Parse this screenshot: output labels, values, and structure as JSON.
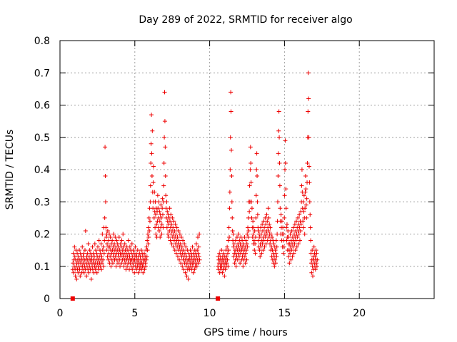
{
  "chart_data": {
    "type": "scatter",
    "title": "Day 289 of 2022, SRMTID for receiver algo",
    "xlabel": "GPS time / hours",
    "ylabel": "SRMTID / TECUs",
    "xlim": [
      0,
      25
    ],
    "ylim": [
      0,
      0.8
    ],
    "xticks": [
      0,
      5,
      10,
      15,
      20
    ],
    "xtick_labels": [
      "0",
      "5",
      "10",
      "15",
      "20"
    ],
    "yticks": [
      0,
      0.1,
      0.2,
      0.3,
      0.4,
      0.5,
      0.6,
      0.7,
      0.8
    ],
    "ytick_labels": [
      "0",
      "0.1",
      "0.2",
      "0.3",
      "0.4",
      "0.5",
      "0.6",
      "0.7",
      "0.8"
    ],
    "grid": true,
    "marker": "+",
    "color": "#ee0000",
    "point_interval_hours": 0.02,
    "series": [
      {
        "name": "SRMTID",
        "segments": [
          {
            "x_start": 0.85,
            "values": [
              0.09,
              0.11,
              0.14,
              0.08,
              0.12,
              0.1,
              0.16,
              0.13,
              0.09,
              0.07,
              0.12,
              0.15,
              0.1,
              0.06,
              0.11,
              0.14,
              0.09,
              0.12,
              0.08,
              0.13,
              0.11,
              0.1,
              0.15,
              0.09,
              0.12,
              0.07,
              0.14,
              0.11,
              0.1,
              0.13,
              0.08,
              0.12,
              0.16,
              0.1,
              0.09,
              0.13,
              0.11,
              0.14,
              0.08,
              0.12,
              0.1,
              0.15,
              0.09,
              0.21,
              0.12,
              0.11,
              0.07,
              0.13,
              0.1,
              0.14,
              0.12,
              0.09,
              0.17,
              0.11,
              0.08,
              0.13,
              0.1,
              0.15,
              0.12,
              0.09,
              0.14,
              0.11,
              0.06,
              0.12,
              0.13,
              0.1,
              0.16,
              0.09,
              0.11,
              0.14,
              0.12,
              0.08,
              0.13,
              0.1,
              0.17,
              0.11,
              0.09,
              0.15,
              0.12,
              0.1,
              0.14,
              0.08,
              0.13,
              0.11,
              0.16,
              0.1,
              0.12,
              0.09,
              0.18,
              0.13,
              0.11,
              0.15,
              0.1,
              0.14,
              0.12,
              0.17,
              0.09,
              0.13,
              0.11,
              0.2,
              0.15,
              0.12,
              0.16,
              0.1,
              0.22,
              0.14,
              0.18,
              0.25,
              0.47,
              0.38,
              0.3,
              0.22,
              0.19,
              0.15,
              0.2,
              0.17,
              0.13,
              0.21,
              0.16,
              0.12,
              0.18,
              0.14,
              0.2,
              0.11,
              0.16,
              0.13,
              0.19,
              0.15,
              0.1,
              0.17,
              0.14,
              0.12,
              0.18,
              0.15,
              0.11,
              0.16,
              0.13,
              0.2,
              0.14,
              0.17,
              0.12,
              0.15,
              0.19,
              0.13,
              0.16,
              0.1,
              0.14,
              0.18,
              0.12,
              0.15,
              0.17,
              0.11,
              0.14,
              0.16,
              0.13,
              0.19,
              0.12,
              0.15,
              0.1,
              0.14,
              0.17,
              0.13,
              0.16,
              0.11,
              0.18,
              0.14,
              0.12,
              0.15,
              0.2,
              0.13,
              0.16,
              0.1,
              0.14,
              0.12,
              0.17,
              0.11,
              0.15,
              0.13,
              0.09,
              0.14,
              0.12,
              0.16,
              0.1,
              0.13,
              0.15,
              0.11,
              0.18,
              0.12,
              0.14,
              0.09,
              0.13,
              0.16,
              0.11,
              0.12,
              0.15,
              0.1,
              0.14,
              0.12,
              0.17,
              0.09,
              0.13,
              0.11,
              0.15,
              0.12,
              0.1,
              0.14,
              0.08,
              0.12,
              0.13,
              0.16,
              0.1,
              0.11,
              0.14,
              0.09,
              0.13,
              0.12,
              0.1,
              0.15,
              0.11,
              0.08,
              0.13,
              0.12,
              0.1,
              0.14,
              0.09,
              0.11,
              0.13,
              0.1,
              0.12,
              0.15,
              0.09,
              0.11,
              0.14,
              0.1,
              0.13,
              0.08,
              0.12,
              0.11,
              0.1,
              0.14,
              0.09,
              0.12,
              0.13,
              0.11,
              0.1,
              0.15,
              0.12,
              0.16,
              0.13,
              0.18,
              0.15,
              0.2,
              0.17,
              0.22,
              0.19,
              0.25,
              0.21,
              0.28,
              0.24,
              0.3,
              0.35,
              0.42,
              0.48,
              0.57,
              0.45,
              0.38,
              0.52,
              0.33,
              0.28,
              0.36,
              0.41,
              0.3,
              0.25,
              0.33,
              0.27,
              0.22,
              0.3,
              0.26,
              0.2,
              0.28,
              0.23,
              0.19,
              0.27,
              0.24,
              0.32,
              0.28,
              0.22,
              0.25,
              0.3,
              0.21,
              0.27,
              0.24,
              0.19,
              0.26,
              0.22,
              0.29,
              0.25,
              0.2,
              0.23,
              0.28,
              0.31,
              0.26,
              0.22,
              0.3,
              0.35,
              0.42,
              0.5,
              0.64,
              0.55,
              0.47,
              0.38,
              0.32,
              0.28,
              0.25,
              0.3,
              0.22,
              0.27,
              0.24,
              0.2,
              0.26,
              0.23,
              0.19,
              0.25,
              0.21,
              0.28,
              0.24,
              0.18,
              0.22,
              0.26,
              0.2,
              0.23,
              0.17,
              0.21,
              0.25,
              0.19,
              0.22,
              0.16,
              0.2,
              0.24,
              0.18,
              0.21,
              0.15,
              0.19,
              0.23,
              0.17,
              0.2,
              0.14,
              0.18,
              0.22,
              0.16,
              0.19,
              0.13,
              0.17,
              0.21,
              0.15,
              0.18,
              0.12,
              0.16,
              0.2,
              0.14,
              0.17,
              0.11,
              0.15,
              0.19,
              0.13,
              0.16,
              0.1,
              0.14,
              0.18,
              0.12,
              0.15,
              0.09,
              0.13,
              0.17,
              0.11,
              0.14,
              0.08,
              0.12,
              0.16,
              0.1,
              0.13,
              0.07,
              0.11,
              0.15,
              0.09,
              0.12,
              0.06,
              0.1,
              0.14,
              0.12,
              0.09,
              0.13,
              0.11,
              0.15,
              0.1,
              0.12,
              0.14,
              0.09,
              0.13,
              0.11,
              0.16,
              0.1,
              0.12,
              0.08,
              0.14,
              0.11,
              0.13,
              0.09,
              0.15,
              0.12,
              0.1,
              0.14,
              0.11,
              0.17,
              0.13,
              0.1,
              0.15,
              0.12,
              0.19,
              0.14,
              0.11,
              0.16,
              0.13,
              0.2,
              0.12
            ]
          },
          {
            "x_start": 10.55,
            "values": [
              0.1,
              0.13,
              0.09,
              0.12,
              0.11,
              0.14,
              0.08,
              0.12,
              0.1,
              0.13,
              0.09,
              0.11,
              0.15,
              0.1,
              0.12,
              0.08,
              0.13,
              0.11,
              0.09,
              0.14,
              0.12,
              0.1,
              0.07,
              0.13,
              0.11,
              0.09,
              0.12,
              0.15,
              0.1,
              0.13,
              0.11,
              0.16,
              0.12,
              0.14,
              0.1,
              0.18,
              0.15,
              0.22,
              0.19,
              0.28,
              0.33,
              0.4,
              0.5,
              0.64,
              0.58,
              0.46,
              0.38,
              0.3,
              0.25,
              0.21,
              0.18,
              0.2,
              0.16,
              0.13,
              0.17,
              0.14,
              0.11,
              0.15,
              0.12,
              0.18,
              0.14,
              0.1,
              0.16,
              0.13,
              0.19,
              0.15,
              0.12,
              0.17,
              0.14,
              0.2,
              0.16,
              0.13,
              0.18,
              0.15,
              0.11,
              0.17,
              0.14,
              0.19,
              0.16,
              0.12,
              0.15,
              0.18,
              0.13,
              0.16,
              0.1,
              0.14,
              0.17,
              0.12,
              0.15,
              0.19,
              0.13,
              0.16,
              0.11,
              0.14,
              0.18,
              0.15,
              0.12,
              0.17,
              0.2,
              0.16,
              0.22,
              0.19,
              0.25,
              0.21,
              0.3,
              0.27,
              0.35,
              0.3,
              0.4,
              0.47,
              0.42,
              0.36,
              0.3,
              0.25,
              0.28,
              0.22,
              0.19,
              0.24,
              0.2,
              0.17,
              0.22,
              0.18,
              0.15,
              0.21,
              0.17,
              0.14,
              0.19,
              0.25,
              0.32,
              0.4,
              0.45,
              0.38,
              0.3,
              0.26,
              0.22,
              0.18,
              0.21,
              0.16,
              0.2,
              0.15,
              0.19,
              0.13,
              0.17,
              0.22,
              0.16,
              0.2,
              0.14,
              0.18,
              0.23,
              0.17,
              0.21,
              0.15,
              0.19,
              0.24,
              0.18,
              0.22,
              0.16,
              0.2,
              0.25,
              0.19,
              0.23,
              0.17,
              0.21,
              0.26,
              0.2,
              0.24,
              0.18,
              0.22,
              0.28,
              0.21,
              0.25,
              0.19,
              0.23,
              0.2,
              0.17,
              0.22,
              0.18,
              0.15,
              0.2,
              0.16,
              0.13,
              0.19,
              0.15,
              0.12,
              0.18,
              0.14,
              0.11,
              0.17,
              0.13,
              0.1,
              0.16,
              0.12,
              0.15,
              0.11,
              0.14,
              0.18,
              0.13,
              0.16,
              0.2,
              0.24,
              0.3,
              0.38,
              0.45,
              0.52,
              0.58,
              0.5,
              0.42,
              0.35,
              0.28,
              0.24,
              0.2,
              0.26,
              0.22,
              0.18,
              0.24,
              0.2,
              0.16,
              0.22,
              0.18,
              0.14,
              0.2,
              0.16,
              0.25,
              0.32,
              0.4,
              0.49,
              0.42,
              0.34,
              0.28,
              0.22,
              0.18,
              0.23,
              0.19,
              0.15,
              0.21,
              0.17,
              0.13,
              0.19,
              0.15,
              0.11,
              0.17,
              0.14,
              0.2,
              0.16,
              0.12,
              0.18,
              0.15,
              0.21,
              0.17,
              0.13,
              0.19,
              0.16,
              0.22,
              0.18,
              0.14,
              0.2,
              0.17,
              0.23,
              0.19,
              0.15,
              0.21,
              0.18,
              0.24,
              0.2,
              0.16,
              0.22,
              0.19,
              0.25,
              0.21,
              0.17,
              0.23,
              0.2,
              0.26,
              0.22,
              0.18,
              0.24,
              0.21,
              0.27,
              0.23,
              0.3,
              0.35,
              0.4,
              0.33,
              0.28,
              0.24,
              0.3,
              0.22,
              0.27,
              0.32,
              0.25,
              0.2,
              0.28,
              0.33,
              0.38,
              0.34,
              0.29,
              0.25,
              0.31,
              0.36,
              0.42,
              0.5,
              0.58,
              0.7,
              0.62,
              0.5,
              0.41,
              0.36,
              0.3,
              0.26,
              0.22,
              0.18,
              0.14,
              0.11,
              0.08,
              0.12,
              0.15,
              0.1,
              0.07,
              0.13,
              0.09,
              0.12,
              0.16,
              0.11,
              0.14,
              0.1,
              0.13,
              0.09,
              0.12,
              0.15,
              0.11,
              0.14,
              0.1,
              0.12
            ]
          }
        ]
      }
    ],
    "x_axis_markers": [
      0.85,
      10.55
    ]
  }
}
